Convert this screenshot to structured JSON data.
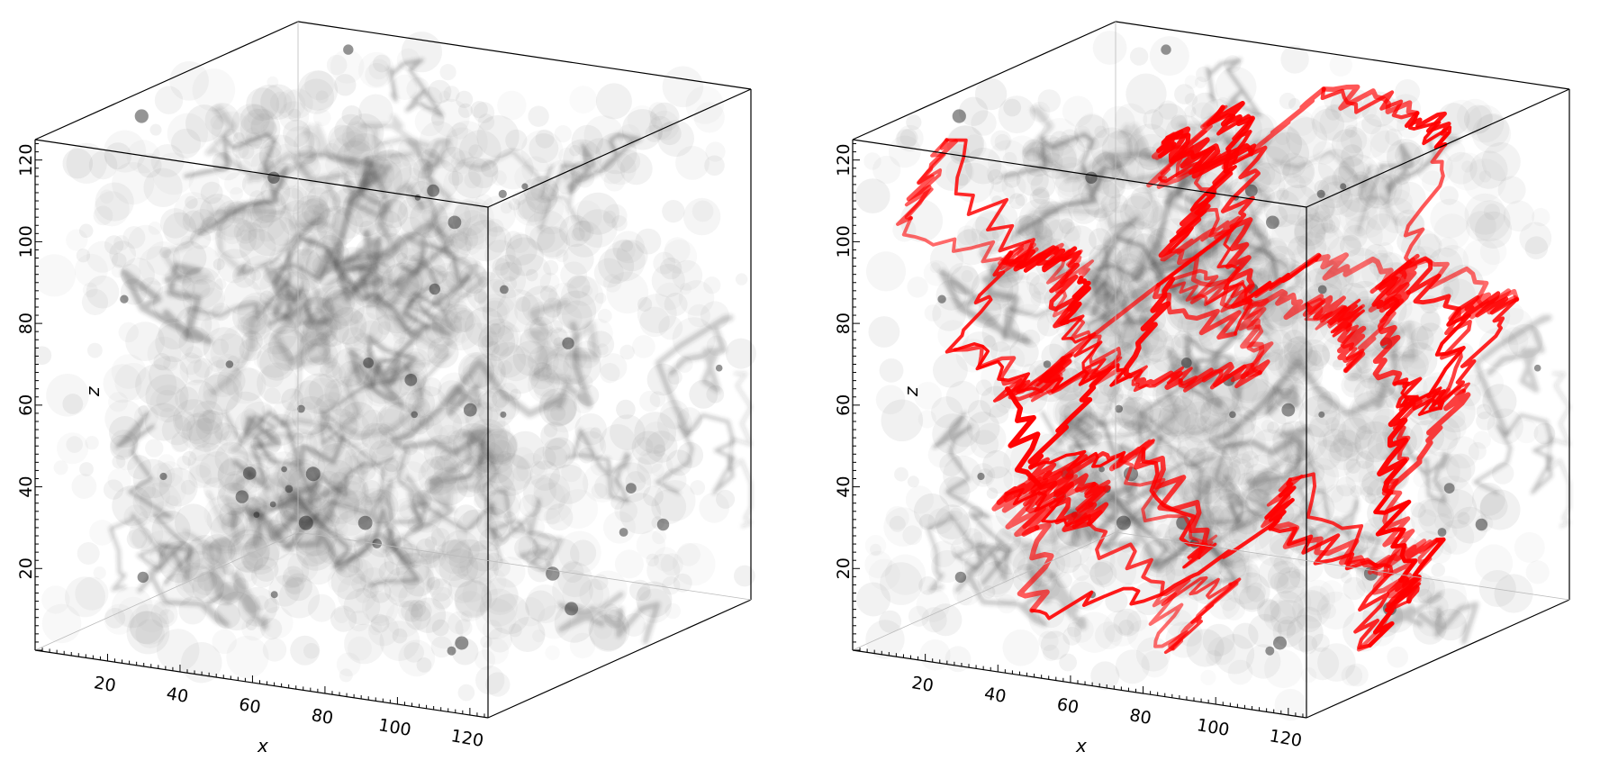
{
  "chart_data": [
    {
      "type": "scatter",
      "panel": "left",
      "description_visible": "3D box of grey density particles",
      "x_axis": {
        "label": "x",
        "ticks": [
          20,
          40,
          60,
          80,
          100,
          120
        ],
        "range": [
          0,
          125
        ]
      },
      "z_axis": {
        "label": "z",
        "ticks": [
          20,
          40,
          60,
          80,
          100,
          120
        ],
        "range": [
          0,
          125
        ]
      },
      "y_axis": {
        "label": "",
        "ticks": [],
        "range": [
          0,
          125
        ]
      },
      "series": [
        {
          "kind": "density",
          "color": "#000000"
        }
      ]
    },
    {
      "type": "scatter",
      "panel": "right",
      "x_axis": {
        "label": "x",
        "ticks": [
          20,
          40,
          60,
          80,
          100,
          120
        ],
        "range": [
          0,
          125
        ]
      },
      "z_axis": {
        "label": "z",
        "ticks": [
          20,
          40,
          60,
          80,
          100,
          120
        ],
        "range": [
          0,
          125
        ]
      },
      "y_axis": {
        "label": "",
        "ticks": [],
        "range": [
          0,
          125
        ]
      },
      "series": [
        {
          "kind": "density",
          "color": "#000000"
        },
        {
          "kind": "filaments",
          "color": "#ff0000"
        }
      ]
    }
  ]
}
